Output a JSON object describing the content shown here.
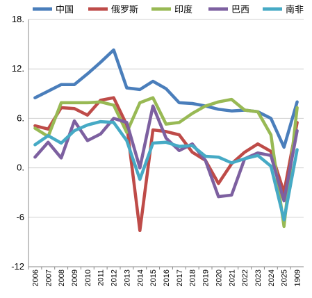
{
  "chart_data": {
    "type": "line",
    "title": "",
    "xlabel": "",
    "ylabel": "",
    "ylim": [
      -12,
      18
    ],
    "y_ticks": [
      "18.",
      "12.",
      "6.",
      "0.",
      "-6",
      "-12"
    ],
    "categories": [
      "2006",
      "2007",
      "2008",
      "2009",
      "2010",
      "2011",
      "2012",
      "2013",
      "2014",
      "2015",
      "2016",
      "2017",
      "2018",
      "2019",
      "2020",
      "2021",
      "2022",
      "2023",
      "2024",
      "2025",
      "1909"
    ],
    "legend_position": "top",
    "grid": "horizontal",
    "series": [
      {
        "name": "中国",
        "color": "#4A7EBB",
        "values": [
          8.5,
          9.3,
          10.1,
          10.1,
          11.4,
          12.8,
          14.3,
          9.7,
          9.5,
          10.5,
          9.6,
          7.9,
          7.8,
          7.5,
          7.1,
          6.9,
          7.0,
          6.8,
          6.0,
          2.5,
          8.0
        ]
      },
      {
        "name": "俄罗斯",
        "color": "#BE4B48",
        "values": [
          5.1,
          4.7,
          7.3,
          7.2,
          6.4,
          8.2,
          8.5,
          5.2,
          -7.6,
          4.6,
          4.4,
          4.0,
          1.9,
          0.9,
          -1.9,
          0.5,
          1.9,
          2.9,
          2.0,
          -3.0,
          5.5
        ]
      },
      {
        "name": "印度",
        "color": "#98B954",
        "values": [
          4.8,
          3.8,
          7.9,
          7.9,
          7.9,
          8.0,
          7.6,
          4.3,
          7.9,
          8.5,
          5.3,
          5.5,
          6.6,
          7.5,
          8.0,
          8.3,
          7.0,
          6.8,
          4.0,
          -7.1,
          7.3
        ]
      },
      {
        "name": "巴西",
        "color": "#7D60A0",
        "values": [
          1.3,
          3.1,
          1.2,
          5.7,
          3.3,
          4.1,
          6.0,
          5.5,
          0.0,
          7.5,
          3.6,
          2.1,
          2.9,
          0.9,
          -3.5,
          -3.3,
          1.1,
          1.8,
          1.5,
          -4.0,
          4.5
        ]
      },
      {
        "name": "南非",
        "color": "#46AAC5",
        "values": [
          2.8,
          3.9,
          3.0,
          4.5,
          5.2,
          5.6,
          5.5,
          3.3,
          -1.4,
          3.0,
          3.1,
          2.6,
          2.7,
          1.4,
          1.3,
          0.6,
          1.1,
          1.5,
          0.2,
          -6.3,
          2.2
        ]
      }
    ]
  }
}
